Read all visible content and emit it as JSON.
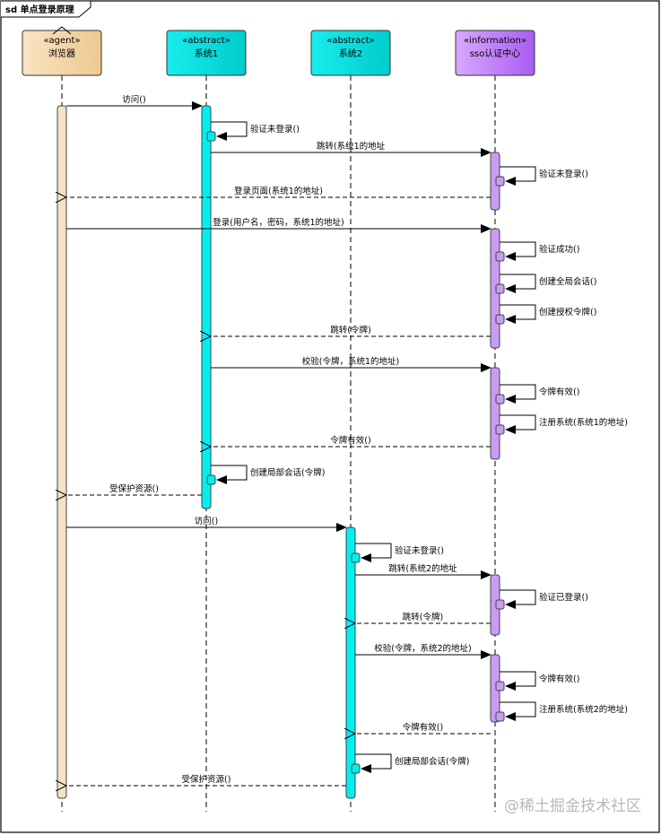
{
  "frame": {
    "title": "sd 单点登录原理"
  },
  "participants": [
    {
      "id": "browser",
      "stereotype": "«agent»",
      "name": "浏览器",
      "color_from": "#f8e4c4",
      "color_to": "#efc88e"
    },
    {
      "id": "s1",
      "stereotype": "«abstract»",
      "name": "系统1",
      "color_from": "#19ecec",
      "color_to": "#00cccc"
    },
    {
      "id": "s2",
      "stereotype": "«abstract»",
      "name": "系统2",
      "color_from": "#19ecec",
      "color_to": "#00cccc"
    },
    {
      "id": "sso",
      "stereotype": "«information»",
      "name": "sso认证中心",
      "color_from": "#d9a8ff",
      "color_to": "#a95cf2"
    }
  ],
  "messages": [
    {
      "from": "browser",
      "to": "s1",
      "kind": "sync",
      "label": "访问()"
    },
    {
      "from": "s1",
      "to": "s1",
      "kind": "self",
      "label": "验证未登录()"
    },
    {
      "from": "s1",
      "to": "sso",
      "kind": "sync",
      "label": "跳转(系统1的地址"
    },
    {
      "from": "sso",
      "to": "sso",
      "kind": "self",
      "label": "验证未登录()"
    },
    {
      "from": "sso",
      "to": "browser",
      "kind": "return",
      "label": "登录页面(系统1的地址)"
    },
    {
      "from": "browser",
      "to": "sso",
      "kind": "sync",
      "label": "登录(用户名，密码，系统1的地址)"
    },
    {
      "from": "sso",
      "to": "sso",
      "kind": "self",
      "label": "验证成功()"
    },
    {
      "from": "sso",
      "to": "sso",
      "kind": "self",
      "label": "创建全局会话()"
    },
    {
      "from": "sso",
      "to": "sso",
      "kind": "self",
      "label": "创建授权令牌()"
    },
    {
      "from": "sso",
      "to": "s1",
      "kind": "return",
      "label": "跳转(令牌)"
    },
    {
      "from": "s1",
      "to": "sso",
      "kind": "sync",
      "label": "校验(令牌，系统1的地址)"
    },
    {
      "from": "sso",
      "to": "sso",
      "kind": "self",
      "label": "令牌有效()"
    },
    {
      "from": "sso",
      "to": "sso",
      "kind": "self",
      "label": "注册系统(系统1的地址)"
    },
    {
      "from": "sso",
      "to": "s1",
      "kind": "return",
      "label": "令牌有效()"
    },
    {
      "from": "s1",
      "to": "s1",
      "kind": "self",
      "label": "创建局部会话(令牌)"
    },
    {
      "from": "s1",
      "to": "browser",
      "kind": "return",
      "label": "受保护资源()"
    },
    {
      "from": "browser",
      "to": "s2",
      "kind": "sync",
      "label": "访问()"
    },
    {
      "from": "s2",
      "to": "s2",
      "kind": "self",
      "label": "验证未登录()"
    },
    {
      "from": "s2",
      "to": "sso",
      "kind": "sync",
      "label": "跳转(系统2的地址"
    },
    {
      "from": "sso",
      "to": "sso",
      "kind": "self",
      "label": "验证已登录()"
    },
    {
      "from": "sso",
      "to": "s2",
      "kind": "return",
      "label": "跳转(令牌)"
    },
    {
      "from": "s2",
      "to": "sso",
      "kind": "sync",
      "label": "校验(令牌，系统2的地址)"
    },
    {
      "from": "sso",
      "to": "sso",
      "kind": "self",
      "label": "令牌有效()"
    },
    {
      "from": "sso",
      "to": "sso",
      "kind": "self",
      "label": "注册系统(系统2的地址)"
    },
    {
      "from": "sso",
      "to": "s2",
      "kind": "return",
      "label": "令牌有效()"
    },
    {
      "from": "s2",
      "to": "s2",
      "kind": "self",
      "label": "创建局部会话(令牌)"
    },
    {
      "from": "s2",
      "to": "browser",
      "kind": "return",
      "label": "受保护资源()"
    }
  ],
  "watermark": "@稀土掘金技术社区"
}
